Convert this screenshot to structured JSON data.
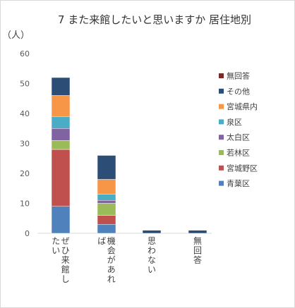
{
  "chart_data": {
    "type": "bar",
    "stacked": true,
    "title": "7 また来館したいと思いますか 居住地別",
    "ylabel": "（人）",
    "xlabel": "",
    "ylim": [
      0,
      60
    ],
    "yticks": [
      0,
      10,
      20,
      30,
      40,
      50,
      60
    ],
    "grid": false,
    "legend_position": "right",
    "categories": [
      "ぜひ来館したい",
      "機会があれば",
      "思わない",
      "無回答"
    ],
    "series": [
      {
        "name": "青葉区",
        "color": "#4f81bd",
        "values": [
          9,
          3,
          0,
          0
        ]
      },
      {
        "name": "宮城野区",
        "color": "#c0504d",
        "values": [
          19,
          3,
          0,
          0
        ]
      },
      {
        "name": "若林区",
        "color": "#9bbb59",
        "values": [
          3,
          4,
          0,
          0
        ]
      },
      {
        "name": "太白区",
        "color": "#8064a2",
        "values": [
          4,
          1,
          0,
          0
        ]
      },
      {
        "name": "泉区",
        "color": "#4bacc6",
        "values": [
          4,
          2,
          0,
          0
        ]
      },
      {
        "name": "宮城県内",
        "color": "#f79646",
        "values": [
          7,
          5,
          0,
          0
        ]
      },
      {
        "name": "その他",
        "color": "#2c4d75",
        "values": [
          6,
          8,
          1,
          1
        ]
      },
      {
        "name": "無回答",
        "color": "#772c2a",
        "values": [
          0,
          0,
          0,
          0
        ]
      }
    ]
  }
}
